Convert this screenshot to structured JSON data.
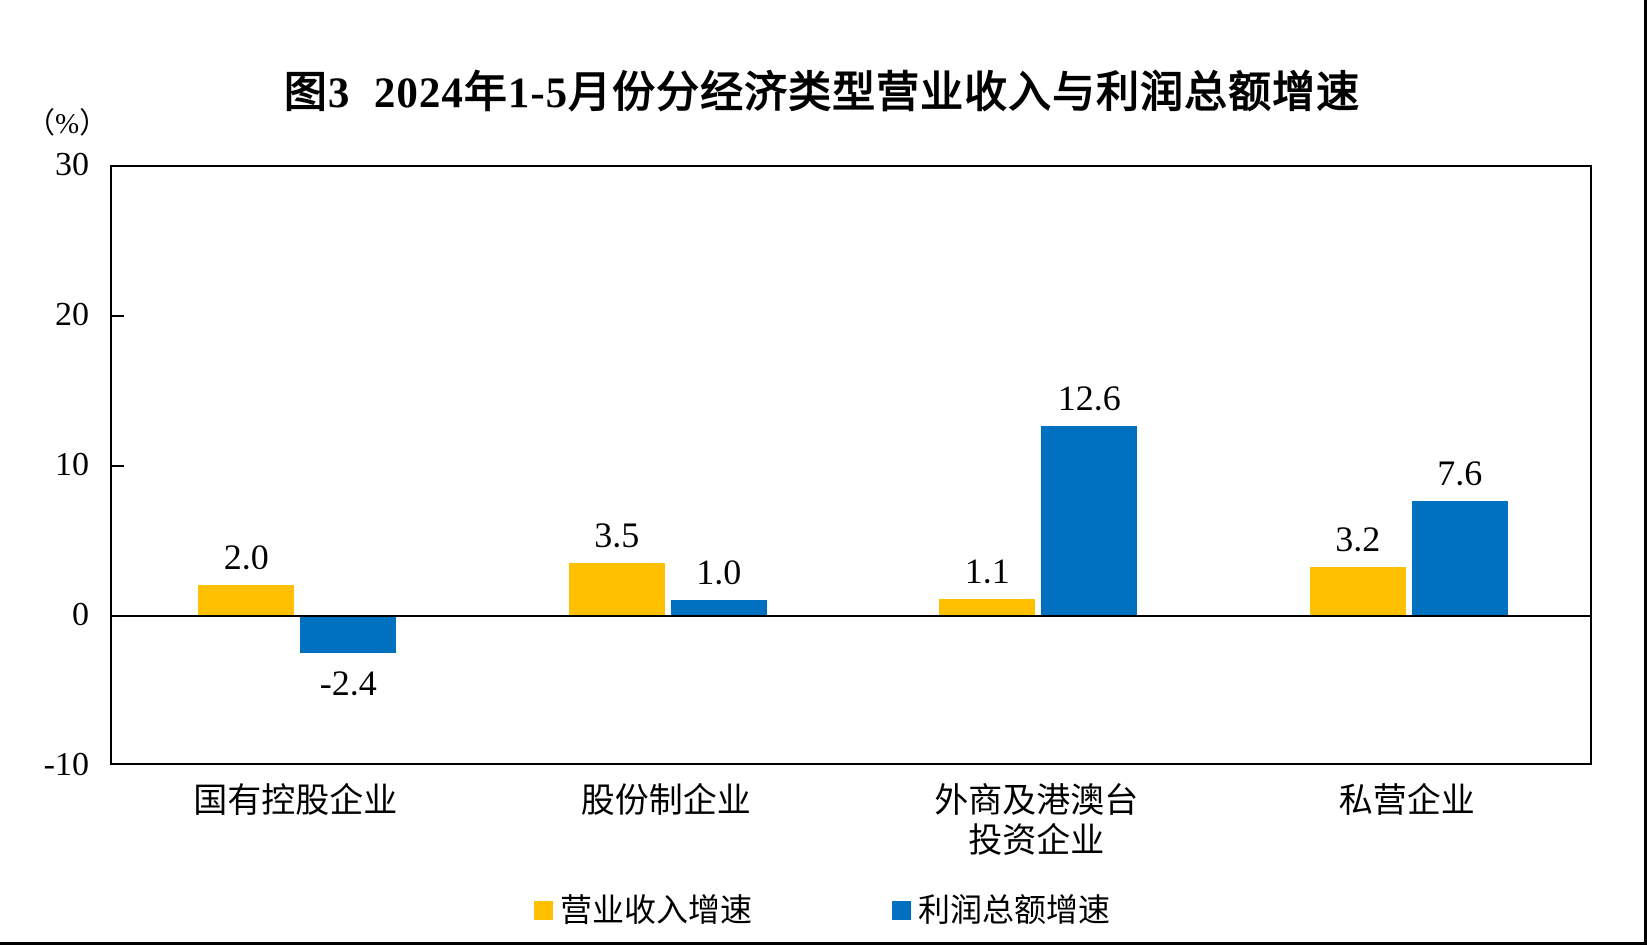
{
  "page": {
    "title": "图3  2024年1-5月份分经济类型营业收入与利润总额增速",
    "unit_label": "（%）"
  },
  "colors": {
    "revenue": "#FFC000",
    "profit": "#0070C0",
    "axis": "#000000"
  },
  "chart_data": {
    "type": "bar",
    "title": "图3  2024年1-5月份分经济类型营业收入与利润总额增速",
    "ylabel": "（%）",
    "xlabel": "",
    "ylim": [
      -10,
      30
    ],
    "yticks": [
      "30",
      "20",
      "10",
      "0",
      "-10"
    ],
    "grid": false,
    "legend_position": "bottom",
    "categories": [
      "国有控股企业",
      "股份制企业",
      "外商及港澳台\n投资企业",
      "私营企业"
    ],
    "series": [
      {
        "name": "营业收入增速",
        "color": "#FFC000",
        "values": [
          2.0,
          3.5,
          1.1,
          3.2
        ],
        "labels": [
          "2.0",
          "3.5",
          "1.1",
          "3.2"
        ]
      },
      {
        "name": "利润总额增速",
        "color": "#0070C0",
        "values": [
          -2.4,
          1.0,
          12.6,
          7.6
        ],
        "labels": [
          "-2.4",
          "1.0",
          "12.6",
          "7.6"
        ]
      }
    ]
  },
  "legend": {
    "items": [
      {
        "label": "营业收入增速",
        "color": "#FFC000"
      },
      {
        "label": "利润总额增速",
        "color": "#0070C0"
      }
    ]
  }
}
